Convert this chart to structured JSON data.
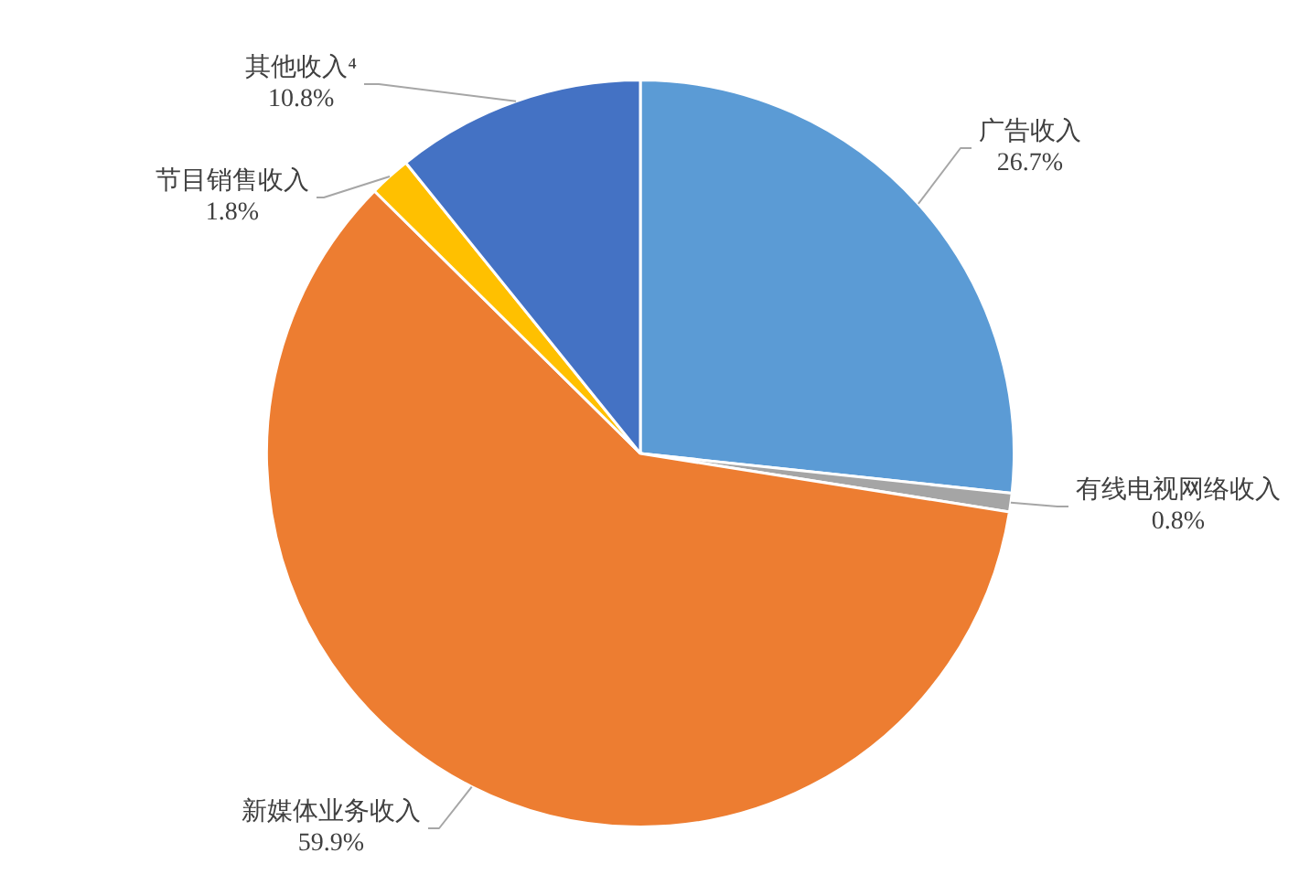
{
  "chart_data": {
    "type": "pie",
    "categories": [
      "广告收入",
      "有线电视网络收入",
      "新媒体业务收入",
      "节目销售收入",
      "其他收入⁴"
    ],
    "values": [
      26.7,
      0.8,
      59.9,
      1.8,
      10.8
    ],
    "colors": [
      "#5b9bd5",
      "#a5a5a5",
      "#ed7d31",
      "#ffc000",
      "#4472c4"
    ],
    "value_labels": [
      "26.7%",
      "0.8%",
      "59.9%",
      "1.8%",
      "10.8%"
    ]
  }
}
